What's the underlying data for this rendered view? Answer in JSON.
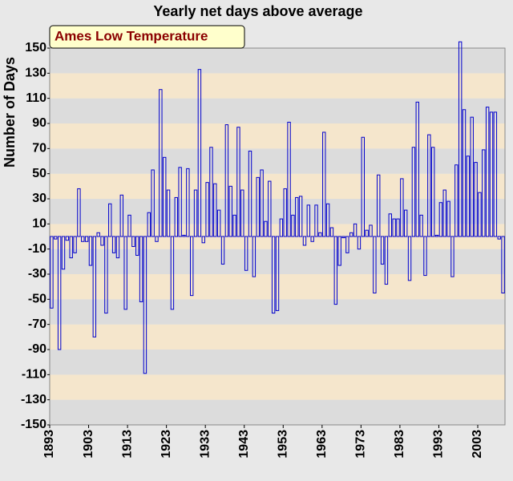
{
  "chart_data": {
    "type": "bar",
    "title": "Yearly net days above average",
    "ylabel": "Number of Days",
    "legend": "Ames Low Temperature",
    "color": "#0000cc",
    "x": [
      1893,
      1894,
      1895,
      1896,
      1897,
      1898,
      1899,
      1900,
      1901,
      1902,
      1903,
      1904,
      1905,
      1906,
      1907,
      1908,
      1909,
      1910,
      1911,
      1912,
      1913,
      1914,
      1915,
      1916,
      1917,
      1918,
      1919,
      1920,
      1921,
      1922,
      1923,
      1924,
      1925,
      1926,
      1927,
      1928,
      1929,
      1930,
      1931,
      1932,
      1933,
      1934,
      1935,
      1936,
      1937,
      1938,
      1939,
      1940,
      1941,
      1942,
      1943,
      1944,
      1945,
      1946,
      1947,
      1948,
      1949,
      1950,
      1951,
      1952,
      1953,
      1954,
      1955,
      1956,
      1957,
      1958,
      1959,
      1960,
      1961,
      1962,
      1963,
      1964,
      1965,
      1966,
      1967,
      1968,
      1969,
      1970,
      1971,
      1972,
      1973,
      1974,
      1975,
      1976,
      1977,
      1978,
      1979,
      1980,
      1981,
      1982,
      1983,
      1984,
      1985,
      1986,
      1987,
      1988,
      1989,
      1990,
      1991,
      1992,
      1993,
      1994,
      1995,
      1996,
      1997,
      1998,
      1999,
      2000,
      2001,
      2002,
      2003,
      2004,
      2005,
      2006,
      2007,
      2008,
      2009
    ],
    "values": [
      -57,
      -2,
      -90,
      -26,
      -3,
      -17,
      -13,
      38,
      -4,
      -4,
      -23,
      -80,
      3,
      -7,
      -61,
      26,
      -13,
      -17,
      33,
      -58,
      17,
      -8,
      -15,
      -52,
      -109,
      19,
      53,
      -4,
      117,
      63,
      37,
      -58,
      31,
      55,
      1,
      54,
      -47,
      37,
      133,
      -5,
      43,
      71,
      42,
      21,
      -22,
      89,
      40,
      17,
      87,
      37,
      -27,
      68,
      -32,
      47,
      53,
      12,
      44,
      -61,
      -59,
      14,
      38,
      91,
      17,
      31,
      32,
      -7,
      25,
      -4,
      25,
      3,
      83,
      26,
      7,
      -54,
      -23,
      -1,
      -13,
      3,
      10,
      -10,
      79,
      5,
      9,
      -45,
      49,
      -22,
      -38,
      18,
      14,
      14,
      46,
      21,
      -35,
      71,
      107,
      17,
      -31,
      81,
      71,
      1,
      27,
      37,
      28,
      -32,
      57,
      155,
      101,
      64,
      95,
      59,
      35,
      69,
      103,
      99,
      99,
      -2,
      -45
    ],
    "xlim": [
      1893,
      2010
    ],
    "xticks": [
      1893,
      1903,
      1913,
      1923,
      1933,
      1943,
      1953,
      1963,
      1973,
      1983,
      1993,
      2003
    ],
    "ylim": [
      -150,
      150
    ],
    "yticks": [
      -150,
      -130,
      -110,
      -90,
      -70,
      -50,
      -30,
      -10,
      10,
      30,
      50,
      70,
      90,
      110,
      130,
      150
    ],
    "band_colors": [
      "#dcdcdc",
      "#f5e6cc"
    ]
  }
}
